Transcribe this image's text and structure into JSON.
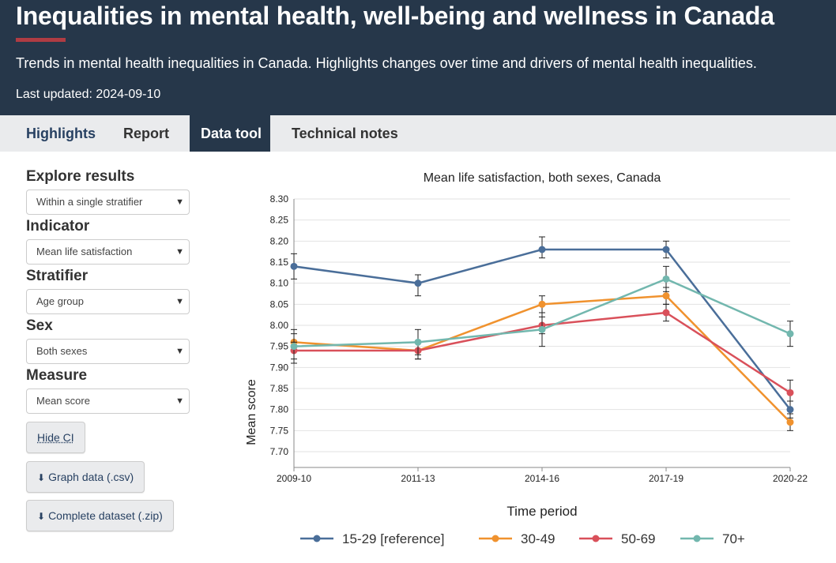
{
  "header": {
    "title": "Inequalities in mental health, well-being and wellness in Canada",
    "subtitle": "Trends in mental health inequalities in Canada. Highlights changes over time and drivers of mental health inequalities.",
    "last_updated": "Last updated: 2024-09-10"
  },
  "tabs": [
    {
      "label": "Highlights"
    },
    {
      "label": "Report"
    },
    {
      "label": "Data tool"
    },
    {
      "label": "Technical notes"
    }
  ],
  "sidebar": {
    "explore": {
      "label": "Explore results",
      "value": "Within a single stratifier"
    },
    "indicator": {
      "label": "Indicator",
      "value": "Mean life satisfaction"
    },
    "stratifier": {
      "label": "Stratifier",
      "value": "Age group"
    },
    "sex": {
      "label": "Sex",
      "value": "Both sexes"
    },
    "measure": {
      "label": "Measure",
      "value": "Mean score"
    },
    "hide_ci": "Hide CI",
    "graph_data": "Graph data (.csv)",
    "complete_dataset": "Complete dataset (.zip)"
  },
  "colors": {
    "header_bg": "#26374a",
    "accent_rule": "#af3c43",
    "series": [
      "#4a6e99",
      "#f0922e",
      "#d9505a",
      "#72b7ae"
    ]
  },
  "chart_data": {
    "type": "line",
    "title": "Mean life satisfaction, both sexes, Canada",
    "xlabel": "Time period",
    "ylabel": "Mean score",
    "categories": [
      "2009-10",
      "2011-13",
      "2014-16",
      "2017-19",
      "2020-22"
    ],
    "ylim": [
      7.7,
      8.3
    ],
    "yticks": [
      "7.70",
      "7.75",
      "7.80",
      "7.85",
      "7.90",
      "7.95",
      "8.00",
      "8.05",
      "8.10",
      "8.15",
      "8.20",
      "8.25",
      "8.30"
    ],
    "grid": true,
    "legend_position": "bottom",
    "series": [
      {
        "name": "15-29 [reference]",
        "values": [
          8.14,
          8.1,
          8.18,
          8.18,
          7.8
        ],
        "ci": [
          [
            8.11,
            8.17
          ],
          [
            8.07,
            8.12
          ],
          [
            8.16,
            8.21
          ],
          [
            8.16,
            8.2
          ],
          [
            7.78,
            7.82
          ]
        ]
      },
      {
        "name": "30-49",
        "values": [
          7.96,
          7.94,
          8.05,
          8.07,
          7.77
        ],
        "ci": [
          [
            7.94,
            7.98
          ],
          [
            7.92,
            7.96
          ],
          [
            8.03,
            8.07
          ],
          [
            8.05,
            8.09
          ],
          [
            7.75,
            7.79
          ]
        ]
      },
      {
        "name": "50-69",
        "values": [
          7.94,
          7.94,
          8.0,
          8.03,
          7.84
        ],
        "ci": [
          [
            7.92,
            7.96
          ],
          [
            7.92,
            7.96
          ],
          [
            7.98,
            8.02
          ],
          [
            8.01,
            8.05
          ],
          [
            7.82,
            7.87
          ]
        ]
      },
      {
        "name": "70+",
        "values": [
          7.95,
          7.96,
          7.99,
          8.11,
          7.98
        ],
        "ci": [
          [
            7.91,
            7.99
          ],
          [
            7.93,
            7.99
          ],
          [
            7.95,
            8.03
          ],
          [
            8.08,
            8.14
          ],
          [
            7.95,
            8.01
          ]
        ]
      }
    ]
  }
}
